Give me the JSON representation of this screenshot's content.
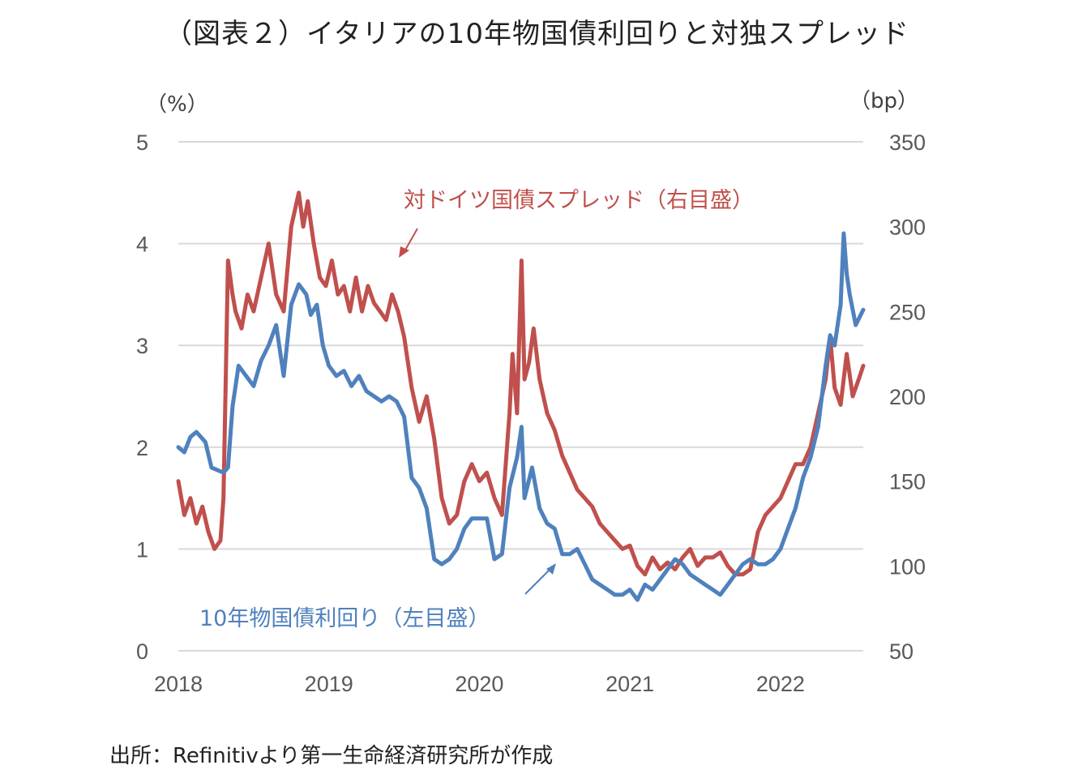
{
  "title": "（図表２）イタリアの10年物国債利回りと対独スプレッド",
  "left_unit": "（%）",
  "right_unit": "（bp）",
  "source": "出所：Refinitivより第一生命経済研究所が作成",
  "colors": {
    "yield": "#4f81bd",
    "spread": "#c0504d",
    "grid": "#d9d9d9"
  },
  "chart_data": {
    "type": "line",
    "x_ticks": [
      "2018",
      "2019",
      "2020",
      "2021",
      "2022"
    ],
    "y_left_ticks": [
      "0",
      "1",
      "2",
      "3",
      "4",
      "5"
    ],
    "y_right_ticks": [
      "50",
      "100",
      "150",
      "200",
      "250",
      "300",
      "350"
    ],
    "ylim_left": [
      0,
      5
    ],
    "ylim_right": [
      50,
      350
    ],
    "xlim": [
      2018.0,
      2022.55
    ],
    "grid": "horizontal",
    "series": [
      {
        "name": "10年物国債利回り（左目盛）",
        "axis": "left",
        "x": [
          2018.0,
          2018.04,
          2018.08,
          2018.12,
          2018.18,
          2018.22,
          2018.3,
          2018.33,
          2018.36,
          2018.4,
          2018.45,
          2018.5,
          2018.55,
          2018.6,
          2018.65,
          2018.7,
          2018.75,
          2018.8,
          2018.85,
          2018.88,
          2018.92,
          2018.96,
          2019.0,
          2019.05,
          2019.1,
          2019.15,
          2019.2,
          2019.25,
          2019.3,
          2019.35,
          2019.4,
          2019.45,
          2019.5,
          2019.55,
          2019.6,
          2019.65,
          2019.7,
          2019.75,
          2019.8,
          2019.85,
          2019.9,
          2019.95,
          2020.0,
          2020.05,
          2020.1,
          2020.15,
          2020.2,
          2020.25,
          2020.28,
          2020.3,
          2020.35,
          2020.4,
          2020.45,
          2020.5,
          2020.55,
          2020.6,
          2020.65,
          2020.7,
          2020.75,
          2020.8,
          2020.85,
          2020.9,
          2020.95,
          2021.0,
          2021.05,
          2021.1,
          2021.15,
          2021.2,
          2021.25,
          2021.3,
          2021.35,
          2021.4,
          2021.45,
          2021.5,
          2021.55,
          2021.6,
          2021.65,
          2021.7,
          2021.75,
          2021.8,
          2021.85,
          2021.9,
          2021.95,
          2022.0,
          2022.05,
          2022.1,
          2022.15,
          2022.2,
          2022.25,
          2022.3,
          2022.33,
          2022.36,
          2022.4,
          2022.42,
          2022.44,
          2022.46,
          2022.5,
          2022.55
        ],
        "values": [
          2.0,
          1.95,
          2.1,
          2.15,
          2.05,
          1.8,
          1.75,
          1.8,
          2.4,
          2.8,
          2.7,
          2.6,
          2.85,
          3.0,
          3.2,
          2.7,
          3.4,
          3.6,
          3.5,
          3.3,
          3.4,
          3.0,
          2.8,
          2.7,
          2.75,
          2.6,
          2.7,
          2.55,
          2.5,
          2.45,
          2.5,
          2.45,
          2.3,
          1.7,
          1.6,
          1.4,
          0.9,
          0.85,
          0.9,
          1.0,
          1.2,
          1.3,
          1.3,
          1.3,
          0.9,
          0.95,
          1.6,
          1.9,
          2.2,
          1.5,
          1.8,
          1.4,
          1.25,
          1.2,
          0.95,
          0.95,
          1.0,
          0.85,
          0.7,
          0.65,
          0.6,
          0.55,
          0.55,
          0.6,
          0.5,
          0.65,
          0.6,
          0.7,
          0.8,
          0.9,
          0.85,
          0.75,
          0.7,
          0.65,
          0.6,
          0.55,
          0.65,
          0.75,
          0.85,
          0.9,
          0.85,
          0.85,
          0.9,
          1.0,
          1.2,
          1.4,
          1.7,
          1.9,
          2.2,
          2.8,
          3.1,
          3.0,
          3.4,
          4.1,
          3.7,
          3.5,
          3.2,
          3.35
        ]
      },
      {
        "name": "対ドイツ国債スプレッド（右目盛）",
        "axis": "right",
        "x": [
          2018.0,
          2018.04,
          2018.08,
          2018.12,
          2018.16,
          2018.2,
          2018.24,
          2018.28,
          2018.3,
          2018.33,
          2018.36,
          2018.38,
          2018.42,
          2018.46,
          2018.5,
          2018.55,
          2018.6,
          2018.65,
          2018.7,
          2018.75,
          2018.8,
          2018.83,
          2018.86,
          2018.9,
          2018.94,
          2018.98,
          2019.02,
          2019.06,
          2019.1,
          2019.14,
          2019.18,
          2019.22,
          2019.26,
          2019.3,
          2019.34,
          2019.38,
          2019.42,
          2019.46,
          2019.5,
          2019.55,
          2019.6,
          2019.65,
          2019.7,
          2019.75,
          2019.8,
          2019.85,
          2019.9,
          2019.95,
          2020.0,
          2020.05,
          2020.1,
          2020.15,
          2020.2,
          2020.22,
          2020.25,
          2020.28,
          2020.3,
          2020.33,
          2020.36,
          2020.4,
          2020.45,
          2020.5,
          2020.55,
          2020.6,
          2020.65,
          2020.7,
          2020.75,
          2020.8,
          2020.85,
          2020.9,
          2020.95,
          2021.0,
          2021.05,
          2021.1,
          2021.15,
          2021.2,
          2021.25,
          2021.3,
          2021.35,
          2021.4,
          2021.45,
          2021.5,
          2021.55,
          2021.6,
          2021.65,
          2021.7,
          2021.75,
          2021.8,
          2021.85,
          2021.9,
          2021.95,
          2022.0,
          2022.05,
          2022.1,
          2022.15,
          2022.2,
          2022.25,
          2022.3,
          2022.33,
          2022.36,
          2022.4,
          2022.44,
          2022.48,
          2022.52,
          2022.55
        ],
        "values": [
          150,
          130,
          140,
          125,
          135,
          120,
          110,
          115,
          140,
          280,
          260,
          250,
          240,
          260,
          250,
          270,
          290,
          260,
          250,
          300,
          320,
          300,
          315,
          290,
          270,
          265,
          280,
          260,
          265,
          250,
          270,
          250,
          265,
          255,
          250,
          245,
          260,
          250,
          235,
          205,
          185,
          200,
          175,
          140,
          125,
          130,
          150,
          160,
          150,
          155,
          140,
          130,
          190,
          225,
          190,
          280,
          210,
          220,
          240,
          210,
          190,
          180,
          165,
          155,
          145,
          140,
          135,
          125,
          120,
          115,
          110,
          112,
          100,
          95,
          105,
          98,
          102,
          98,
          105,
          110,
          100,
          105,
          105,
          108,
          100,
          95,
          95,
          98,
          120,
          130,
          135,
          140,
          150,
          160,
          160,
          170,
          190,
          210,
          235,
          205,
          195,
          225,
          200,
          210,
          218
        ]
      }
    ],
    "annotations": [
      {
        "text": "対ドイツ国債スプレッド（右目盛）",
        "series": 1
      },
      {
        "text": "10年物国債利回り（左目盛）",
        "series": 0
      }
    ]
  }
}
